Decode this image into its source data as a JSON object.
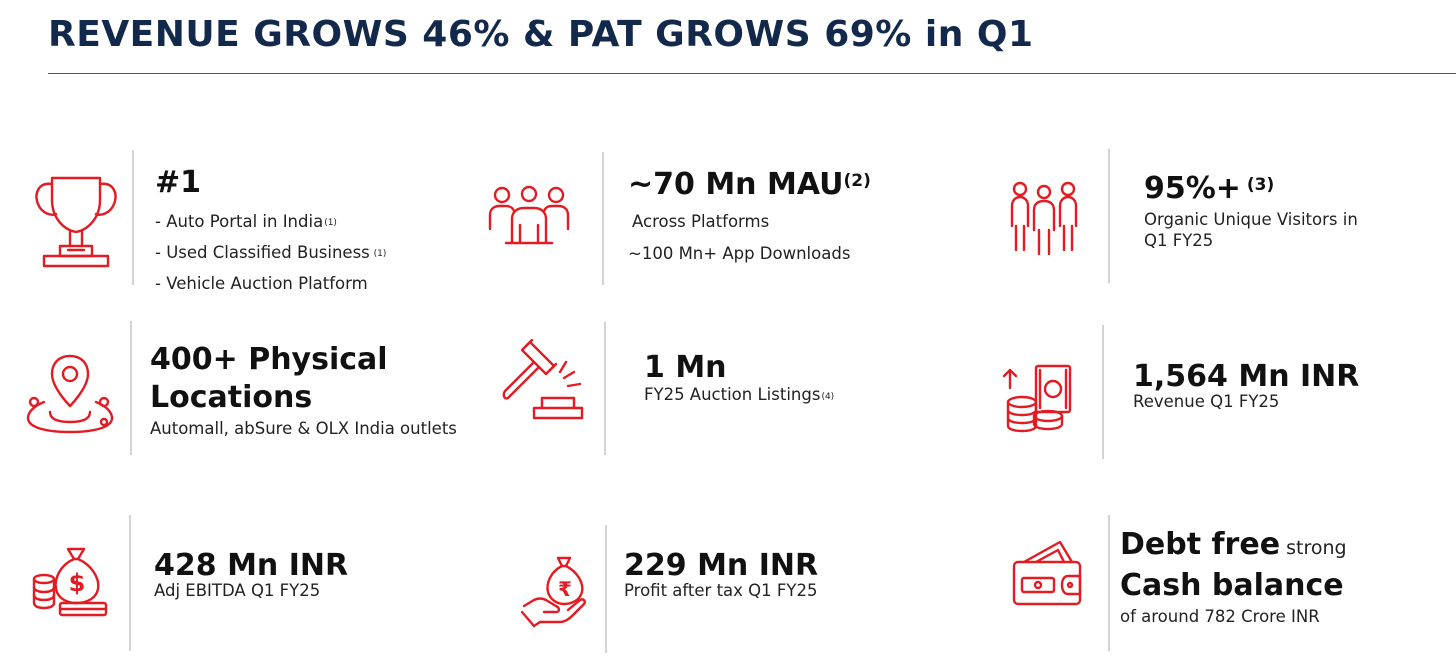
{
  "title": "REVENUE GROWS 46% & PAT GROWS 69% in Q1",
  "colors": {
    "title": "#13294b",
    "accent": "#e31b23"
  },
  "icons": [
    "trophy-icon",
    "people-group-icon",
    "visitors-icon",
    "location-pin-icon",
    "auction-gavel-icon",
    "revenue-cash-icon",
    "money-bag-coins-icon",
    "rupee-hand-icon",
    "wallet-cash-icon"
  ],
  "cards": {
    "rank": {
      "headline": "#1",
      "items": [
        {
          "text": "- Auto Portal in India",
          "sup": "(1)"
        },
        {
          "text": "- Used Classified Business",
          "sup": " (1)"
        },
        {
          "text": "- Vehicle Auction Platform",
          "sup": ""
        }
      ]
    },
    "mau": {
      "headline": "~70 Mn MAU",
      "sup": "(2)",
      "line1": "Across Platforms",
      "line2": "~100 Mn+ App Downloads"
    },
    "visitors": {
      "headline": "95%+",
      "sup": " (3)",
      "line1": "Organic Unique Visitors in",
      "line2": "Q1 FY25"
    },
    "locations": {
      "headline1": "400+ Physical",
      "headline2": "Locations",
      "line1": "Automall, abSure & OLX India outlets"
    },
    "auction": {
      "headline": "1 Mn",
      "line1": "FY25 Auction Listings",
      "sup": "(4)"
    },
    "revenue": {
      "headline": "1,564 Mn INR",
      "line1": "Revenue Q1 FY25"
    },
    "ebitda": {
      "headline": "428 Mn INR",
      "line1": "Adj EBITDA Q1 FY25"
    },
    "pat": {
      "headline": "229 Mn INR",
      "line1": "Profit after tax Q1 FY25"
    },
    "cash": {
      "headline1": "Debt free",
      "headline1_small": " strong",
      "headline2": "Cash balance",
      "line1": "of around 782 Crore INR"
    }
  }
}
